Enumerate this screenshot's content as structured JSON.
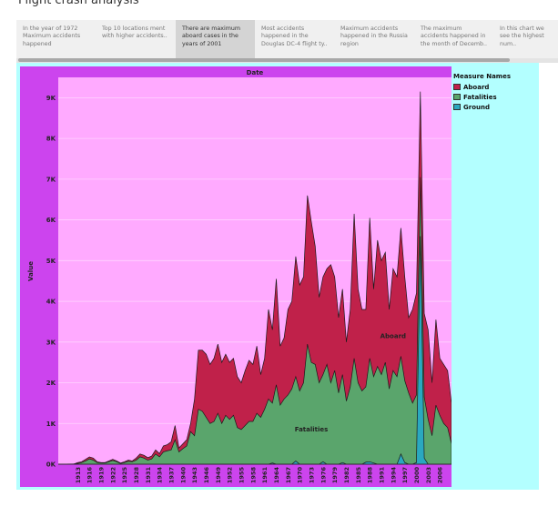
{
  "title": "Flight crash analysis",
  "story_points": [
    "In the year of 1972 Maximum accidents happened",
    "Top 10 locations ment with higher accidents..",
    "There are maximum aboard cases in the years of 2001",
    "Most accidents happened in the Douglas DC-4 flight ty..",
    "Maximum accidents happened in the Russia region",
    "The maximum accidents happened in the month of Decemb..",
    "In this chart we see the highest num.."
  ],
  "active_story_point": 2,
  "colors": {
    "plot_background": "#ffaaff",
    "frame": "#cc44ee",
    "dashboard_background": "#b3ffff",
    "aboard": "#c0214a",
    "fatalities": "#5aa56c",
    "ground": "#2aa8c0"
  },
  "legend": {
    "title": "Measure Names",
    "items": [
      "Aboard",
      "Fatalities",
      "Ground"
    ]
  },
  "chart_data": {
    "type": "area",
    "title": "Date",
    "xlabel": "",
    "ylabel": "Value",
    "xlim": [
      1908,
      2009
    ],
    "ylim": [
      0,
      9500
    ],
    "yticks": [
      0,
      1000,
      2000,
      3000,
      4000,
      5000,
      6000,
      7000,
      8000,
      9000
    ],
    "ytick_labels": [
      "0K",
      "1K",
      "2K",
      "3K",
      "4K",
      "5K",
      "6K",
      "7K",
      "8K",
      "9K"
    ],
    "xticks": [
      1913,
      1916,
      1919,
      1922,
      1925,
      1928,
      1931,
      1934,
      1937,
      1940,
      1943,
      1946,
      1949,
      1952,
      1955,
      1958,
      1961,
      1964,
      1967,
      1970,
      1973,
      1976,
      1979,
      1982,
      1985,
      1988,
      1991,
      1994,
      1997,
      2000,
      2003,
      2006
    ],
    "area_labels": [
      {
        "series": "Aboard",
        "text": "Aboard",
        "x": 1994,
        "y": 3100
      },
      {
        "series": "Fatalities",
        "text": "Fatalities",
        "x": 1973,
        "y": 800
      }
    ],
    "legend_position": "right",
    "series": [
      {
        "name": "Aboard",
        "points": [
          [
            1908,
            0
          ],
          [
            1912,
            5
          ],
          [
            1913,
            40
          ],
          [
            1914,
            60
          ],
          [
            1915,
            120
          ],
          [
            1916,
            180
          ],
          [
            1917,
            150
          ],
          [
            1918,
            60
          ],
          [
            1919,
            40
          ],
          [
            1920,
            40
          ],
          [
            1921,
            80
          ],
          [
            1922,
            120
          ],
          [
            1923,
            80
          ],
          [
            1924,
            30
          ],
          [
            1925,
            60
          ],
          [
            1926,
            100
          ],
          [
            1927,
            80
          ],
          [
            1928,
            150
          ],
          [
            1929,
            250
          ],
          [
            1930,
            220
          ],
          [
            1931,
            160
          ],
          [
            1932,
            200
          ],
          [
            1933,
            350
          ],
          [
            1934,
            260
          ],
          [
            1935,
            450
          ],
          [
            1936,
            480
          ],
          [
            1937,
            550
          ],
          [
            1938,
            950
          ],
          [
            1939,
            400
          ],
          [
            1940,
            500
          ],
          [
            1941,
            600
          ],
          [
            1942,
            1000
          ],
          [
            1943,
            1600
          ],
          [
            1944,
            2800
          ],
          [
            1945,
            2800
          ],
          [
            1946,
            2700
          ],
          [
            1947,
            2450
          ],
          [
            1948,
            2600
          ],
          [
            1949,
            2950
          ],
          [
            1950,
            2500
          ],
          [
            1951,
            2700
          ],
          [
            1952,
            2500
          ],
          [
            1953,
            2600
          ],
          [
            1954,
            2150
          ],
          [
            1955,
            2000
          ],
          [
            1956,
            2300
          ],
          [
            1957,
            2550
          ],
          [
            1958,
            2450
          ],
          [
            1959,
            2900
          ],
          [
            1960,
            2200
          ],
          [
            1961,
            2600
          ],
          [
            1962,
            3800
          ],
          [
            1963,
            3300
          ],
          [
            1964,
            4550
          ],
          [
            1965,
            2900
          ],
          [
            1966,
            3100
          ],
          [
            1967,
            3800
          ],
          [
            1968,
            4000
          ],
          [
            1969,
            5100
          ],
          [
            1970,
            4400
          ],
          [
            1971,
            4600
          ],
          [
            1972,
            6600
          ],
          [
            1973,
            5950
          ],
          [
            1974,
            5350
          ],
          [
            1975,
            4100
          ],
          [
            1976,
            4600
          ],
          [
            1977,
            4800
          ],
          [
            1978,
            4900
          ],
          [
            1979,
            4600
          ],
          [
            1980,
            3600
          ],
          [
            1981,
            4300
          ],
          [
            1982,
            3000
          ],
          [
            1983,
            3800
          ],
          [
            1984,
            6150
          ],
          [
            1985,
            4300
          ],
          [
            1986,
            3800
          ],
          [
            1987,
            3800
          ],
          [
            1988,
            6050
          ],
          [
            1989,
            4300
          ],
          [
            1990,
            5500
          ],
          [
            1991,
            5000
          ],
          [
            1992,
            5200
          ],
          [
            1993,
            3800
          ],
          [
            1994,
            4800
          ],
          [
            1995,
            4600
          ],
          [
            1996,
            5800
          ],
          [
            1997,
            4600
          ],
          [
            1998,
            3600
          ],
          [
            1999,
            3800
          ],
          [
            2000,
            4200
          ],
          [
            2001,
            9150
          ],
          [
            2002,
            3700
          ],
          [
            2003,
            3300
          ],
          [
            2004,
            2000
          ],
          [
            2005,
            3550
          ],
          [
            2006,
            2600
          ],
          [
            2007,
            2450
          ],
          [
            2008,
            2300
          ],
          [
            2009,
            1500
          ]
        ]
      },
      {
        "name": "Fatalities",
        "points": [
          [
            1908,
            0
          ],
          [
            1912,
            5
          ],
          [
            1913,
            20
          ],
          [
            1914,
            40
          ],
          [
            1915,
            80
          ],
          [
            1916,
            130
          ],
          [
            1917,
            100
          ],
          [
            1918,
            40
          ],
          [
            1919,
            30
          ],
          [
            1920,
            30
          ],
          [
            1921,
            60
          ],
          [
            1922,
            90
          ],
          [
            1923,
            60
          ],
          [
            1924,
            20
          ],
          [
            1925,
            40
          ],
          [
            1926,
            70
          ],
          [
            1927,
            60
          ],
          [
            1928,
            100
          ],
          [
            1929,
            180
          ],
          [
            1930,
            150
          ],
          [
            1931,
            100
          ],
          [
            1932,
            130
          ],
          [
            1933,
            250
          ],
          [
            1934,
            180
          ],
          [
            1935,
            300
          ],
          [
            1936,
            330
          ],
          [
            1937,
            350
          ],
          [
            1938,
            600
          ],
          [
            1939,
            300
          ],
          [
            1940,
            380
          ],
          [
            1941,
            450
          ],
          [
            1942,
            800
          ],
          [
            1943,
            700
          ],
          [
            1944,
            1350
          ],
          [
            1945,
            1300
          ],
          [
            1946,
            1150
          ],
          [
            1947,
            1000
          ],
          [
            1948,
            1050
          ],
          [
            1949,
            1250
          ],
          [
            1950,
            1000
          ],
          [
            1951,
            1200
          ],
          [
            1952,
            1100
          ],
          [
            1953,
            1200
          ],
          [
            1954,
            900
          ],
          [
            1955,
            850
          ],
          [
            1956,
            950
          ],
          [
            1957,
            1050
          ],
          [
            1958,
            1050
          ],
          [
            1959,
            1250
          ],
          [
            1960,
            1150
          ],
          [
            1961,
            1350
          ],
          [
            1962,
            1600
          ],
          [
            1963,
            1500
          ],
          [
            1964,
            1950
          ],
          [
            1965,
            1450
          ],
          [
            1966,
            1600
          ],
          [
            1967,
            1700
          ],
          [
            1968,
            1850
          ],
          [
            1969,
            2150
          ],
          [
            1970,
            1800
          ],
          [
            1971,
            2000
          ],
          [
            1972,
            2950
          ],
          [
            1973,
            2500
          ],
          [
            1974,
            2450
          ],
          [
            1975,
            2000
          ],
          [
            1976,
            2200
          ],
          [
            1977,
            2450
          ],
          [
            1978,
            2000
          ],
          [
            1979,
            2300
          ],
          [
            1980,
            1750
          ],
          [
            1981,
            2200
          ],
          [
            1982,
            1550
          ],
          [
            1983,
            1900
          ],
          [
            1984,
            2600
          ],
          [
            1985,
            2000
          ],
          [
            1986,
            1800
          ],
          [
            1987,
            1900
          ],
          [
            1988,
            2600
          ],
          [
            1989,
            2150
          ],
          [
            1990,
            2400
          ],
          [
            1991,
            2200
          ],
          [
            1992,
            2500
          ],
          [
            1993,
            1850
          ],
          [
            1994,
            2300
          ],
          [
            1995,
            2150
          ],
          [
            1996,
            2650
          ],
          [
            1997,
            2050
          ],
          [
            1998,
            1750
          ],
          [
            1999,
            1500
          ],
          [
            2000,
            1700
          ],
          [
            2001,
            7050
          ],
          [
            2002,
            1650
          ],
          [
            2003,
            1100
          ],
          [
            2004,
            700
          ],
          [
            2005,
            1450
          ],
          [
            2006,
            1200
          ],
          [
            2007,
            1000
          ],
          [
            2008,
            900
          ],
          [
            2009,
            500
          ]
        ]
      },
      {
        "name": "Ground",
        "points": [
          [
            1908,
            0
          ],
          [
            1962,
            0
          ],
          [
            1963,
            30
          ],
          [
            1964,
            0
          ],
          [
            1968,
            0
          ],
          [
            1969,
            80
          ],
          [
            1970,
            0
          ],
          [
            1975,
            0
          ],
          [
            1976,
            60
          ],
          [
            1977,
            0
          ],
          [
            1980,
            0
          ],
          [
            1981,
            40
          ],
          [
            1982,
            0
          ],
          [
            1986,
            0
          ],
          [
            1987,
            50
          ],
          [
            1988,
            60
          ],
          [
            1989,
            30
          ],
          [
            1990,
            0
          ],
          [
            1995,
            0
          ],
          [
            1996,
            250
          ],
          [
            1997,
            40
          ],
          [
            1998,
            0
          ],
          [
            1999,
            0
          ],
          [
            2000,
            40
          ],
          [
            2001,
            5600
          ],
          [
            2002,
            150
          ],
          [
            2003,
            0
          ],
          [
            2009,
            0
          ]
        ]
      }
    ]
  }
}
